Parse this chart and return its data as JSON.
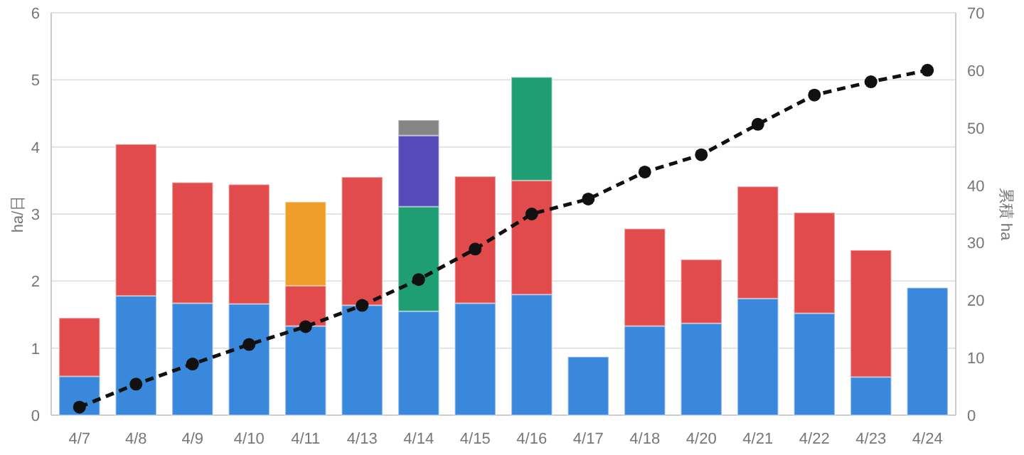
{
  "chart_data": {
    "type": "bar",
    "stacked": true,
    "ylabel": "ha/日",
    "y2label": "累積 ha",
    "categories": [
      "4/7",
      "4/8",
      "4/9",
      "4/10",
      "4/11",
      "4/13",
      "4/14",
      "4/15",
      "4/16",
      "4/17",
      "4/18",
      "4/20",
      "4/21",
      "4/22",
      "4/23",
      "4/24"
    ],
    "series": [
      {
        "color": "#3a88dc",
        "values": [
          0.58,
          1.78,
          1.67,
          1.66,
          1.33,
          1.64,
          1.55,
          1.67,
          1.8,
          0.87,
          1.33,
          1.37,
          1.74,
          1.52,
          0.57,
          1.9
        ]
      },
      {
        "color": "#e24b4b",
        "values": [
          0.87,
          2.26,
          1.8,
          1.78,
          0.6,
          1.91,
          null,
          1.89,
          1.7,
          null,
          1.45,
          0.95,
          1.67,
          1.5,
          1.89,
          null
        ]
      },
      {
        "color": "#f09e2a",
        "values": [
          null,
          null,
          null,
          null,
          1.25,
          null,
          null,
          null,
          null,
          null,
          null,
          null,
          null,
          null,
          null,
          null
        ]
      },
      {
        "color": "#1f9e73",
        "values": [
          null,
          null,
          null,
          null,
          null,
          null,
          1.56,
          null,
          1.54,
          null,
          null,
          null,
          null,
          null,
          null,
          null
        ]
      },
      {
        "color": "#554bb8",
        "values": [
          null,
          null,
          null,
          null,
          null,
          null,
          1.06,
          null,
          null,
          null,
          null,
          null,
          null,
          null,
          null,
          null
        ]
      },
      {
        "color": "#868686",
        "values": [
          null,
          null,
          null,
          null,
          null,
          null,
          0.23,
          null,
          null,
          null,
          null,
          null,
          null,
          null,
          null,
          null
        ]
      },
      {
        "type": "line",
        "axis": "y2",
        "color": "#111111",
        "marker": "circle",
        "line_style": "dashed",
        "values": [
          1.4,
          5.4,
          8.9,
          12.3,
          15.4,
          19.1,
          23.6,
          28.9,
          35.0,
          37.6,
          42.3,
          45.3,
          50.6,
          55.7,
          58.0,
          60.0
        ]
      }
    ],
    "ylim": [
      0,
      6
    ],
    "yticks": [
      0,
      1,
      2,
      3,
      4,
      5,
      6
    ],
    "y2lim": [
      0,
      70
    ],
    "y2ticks": [
      0,
      10,
      20,
      30,
      40,
      50,
      60,
      70
    ],
    "grid": "y"
  }
}
